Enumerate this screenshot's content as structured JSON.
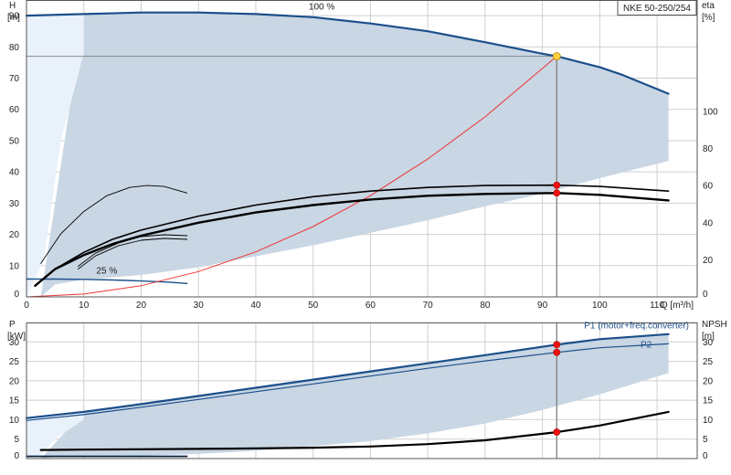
{
  "chart_data": [
    {
      "type": "line",
      "panel": "top",
      "title": "NKE 50-250/254",
      "xlabel": "Q [m³/h]",
      "ylabel": "H",
      "ylabel_unit": "[m]",
      "y2label": "eta",
      "y2label_unit": "[%]",
      "xlim": [
        0,
        117
      ],
      "ylim": [
        0,
        95
      ],
      "y2lim": [
        0,
        160
      ],
      "x_ticks": [
        0,
        10,
        20,
        30,
        40,
        50,
        60,
        70,
        80,
        90,
        100,
        110
      ],
      "y_ticks": [
        0,
        10,
        20,
        30,
        40,
        50,
        60,
        70,
        80,
        90
      ],
      "y2_ticks": [
        0,
        20,
        40,
        60,
        80,
        100
      ],
      "annotations": [
        "100 %",
        "25 %"
      ],
      "series": [
        {
          "role": "head-100",
          "color": "#1b4f8a",
          "width": 2.2,
          "x": [
            0,
            10,
            20,
            30,
            40,
            50,
            60,
            70,
            80,
            90,
            92.5,
            100,
            104,
            112
          ],
          "y": [
            90,
            90.5,
            91,
            91,
            90.5,
            89.5,
            87.5,
            85,
            81.5,
            77.8,
            77,
            73.5,
            71,
            65
          ]
        },
        {
          "role": "head-25",
          "color": "#1b4f8a",
          "width": 1.4,
          "x": [
            0,
            5,
            10,
            15,
            20,
            25,
            28
          ],
          "y": [
            5.7,
            5.7,
            5.6,
            5.4,
            5.1,
            4.7,
            4.3
          ]
        },
        {
          "role": "system-curve",
          "color": "#ee3333",
          "width": 1,
          "x": [
            0,
            10,
            20,
            30,
            40,
            50,
            60,
            70,
            80,
            92.5
          ],
          "y": [
            0,
            0.9,
            3.6,
            8.1,
            14.4,
            22.5,
            32.4,
            44.1,
            57.6,
            77
          ]
        },
        {
          "role": "eta-upper",
          "axis": "y2",
          "color": "#000000",
          "width": 1.6,
          "x": [
            1.5,
            5,
            10,
            15,
            20,
            30,
            40,
            50,
            60,
            70,
            80,
            92.5,
            100,
            112
          ],
          "y": [
            6,
            15,
            24,
            31,
            36,
            43.5,
            49.5,
            54,
            57,
            59,
            60,
            60.2,
            59.5,
            57
          ]
        },
        {
          "role": "eta-lower",
          "axis": "y2",
          "color": "#000000",
          "width": 2.4,
          "x": [
            1.5,
            5,
            10,
            15,
            20,
            30,
            40,
            50,
            60,
            70,
            80,
            92.5,
            100,
            112
          ],
          "y": [
            6,
            15,
            22.5,
            28.5,
            33,
            40,
            45.5,
            49.5,
            52.5,
            54.5,
            55.5,
            56,
            55,
            52
          ]
        },
        {
          "role": "eta-25-a",
          "axis": "y2",
          "color": "#000000",
          "width": 0.9,
          "x": [
            9,
            12,
            16,
            20,
            24,
            28
          ],
          "y": [
            15,
            22,
            27.5,
            30.5,
            31.5,
            31
          ]
        },
        {
          "role": "eta-25-b",
          "axis": "y2",
          "color": "#000000",
          "width": 0.9,
          "x": [
            9,
            12,
            16,
            20,
            24,
            28
          ],
          "y": [
            16.5,
            23.5,
            29,
            32.5,
            33.5,
            33
          ]
        },
        {
          "role": "eta-thin-arc",
          "axis": "y2",
          "color": "#000000",
          "width": 0.9,
          "x": [
            2.5,
            6,
            10,
            14,
            18,
            21,
            24,
            28
          ],
          "y": [
            18,
            34,
            46,
            54.5,
            59,
            60,
            59.5,
            56
          ]
        }
      ],
      "bands": [
        {
          "role": "operating-range",
          "color": "#c9d6e3",
          "upper_x": [
            10,
            20,
            30,
            40,
            50,
            60,
            70,
            80,
            90,
            100,
            104,
            112
          ],
          "upper_y": [
            90.5,
            91,
            91,
            90.5,
            89.5,
            87.5,
            85,
            81.5,
            77.8,
            73.5,
            71,
            65
          ],
          "lower_x": [
            112,
            100,
            90,
            80,
            70,
            60,
            50,
            40,
            30,
            20,
            10,
            5,
            2.5
          ],
          "lower_y": [
            43.5,
            38,
            33,
            29,
            24.5,
            20.5,
            16.5,
            13,
            9.5,
            7,
            5.5,
            4,
            0
          ]
        },
        {
          "role": "light-region",
          "color": "#e9f1fa",
          "upper_x": [
            0,
            10
          ],
          "upper_y": [
            90,
            90.5
          ],
          "lower_x": [
            10,
            6,
            3,
            0
          ],
          "lower_y": [
            78,
            50,
            12,
            0
          ]
        }
      ],
      "duty_point": {
        "x": 92.5,
        "y": 77
      },
      "markers": [
        {
          "axis": "y2",
          "x": 92.5,
          "y": 60.2
        },
        {
          "axis": "y2",
          "x": 92.5,
          "y": 56
        }
      ]
    },
    {
      "type": "line",
      "panel": "bottom",
      "ylabel": "P",
      "ylabel_unit": "[kW]",
      "y2label": "NPSH",
      "y2label_unit": "[m]",
      "xlim": [
        0,
        117
      ],
      "ylim": [
        0,
        35
      ],
      "y2lim": [
        0,
        35
      ],
      "y_ticks": [
        0,
        5,
        10,
        15,
        20,
        25,
        30
      ],
      "y2_ticks": [
        0,
        5,
        10,
        15,
        20,
        25,
        30
      ],
      "legend": [
        "P1 (motor+freq.converter)",
        "P2"
      ],
      "series": [
        {
          "role": "P1",
          "color": "#1b4f8a",
          "width": 2.2,
          "x": [
            0,
            10,
            20,
            30,
            40,
            50,
            60,
            70,
            80,
            92.5,
            100,
            112
          ],
          "y": [
            10.4,
            12,
            14,
            16.1,
            18.2,
            20.3,
            22.4,
            24.5,
            26.6,
            29.3,
            30.7,
            32
          ]
        },
        {
          "role": "P2",
          "color": "#1b4f8a",
          "width": 1.2,
          "x": [
            0,
            10,
            20,
            30,
            40,
            50,
            60,
            70,
            80,
            92.5,
            100,
            112
          ],
          "y": [
            9.8,
            11.3,
            13.2,
            15.2,
            17.2,
            19.2,
            21.2,
            23.2,
            25.1,
            27.3,
            28.5,
            29.5
          ]
        },
        {
          "role": "NPSH",
          "axis": "y2",
          "color": "#000000",
          "width": 2.2,
          "x": [
            2.5,
            10,
            20,
            30,
            40,
            50,
            60,
            70,
            80,
            92.5,
            100,
            112
          ],
          "y": [
            2.2,
            2.3,
            2.4,
            2.5,
            2.6,
            2.8,
            3.1,
            3.7,
            4.7,
            6.8,
            8.5,
            12
          ]
        },
        {
          "role": "P-25",
          "color": "#1b4f8a",
          "width": 1.6,
          "x": [
            0,
            10,
            20,
            28
          ],
          "y": [
            0.6,
            0.6,
            0.6,
            0.6
          ]
        },
        {
          "role": "P-25b",
          "color": "#000000",
          "width": 1,
          "x": [
            0,
            10,
            20,
            28
          ],
          "y": [
            0.5,
            0.5,
            0.5,
            0.5
          ]
        }
      ],
      "bands": [
        {
          "role": "power-range",
          "color": "#c9d6e3",
          "upper_x": [
            10,
            20,
            30,
            40,
            50,
            60,
            70,
            80,
            92.5,
            100,
            112
          ],
          "upper_y": [
            12,
            14,
            16.1,
            18.2,
            20.3,
            22.4,
            24.5,
            26.6,
            29.3,
            30.7,
            32
          ],
          "lower_x": [
            112,
            100,
            90,
            80,
            70,
            60,
            50,
            40,
            30,
            20,
            10,
            5,
            2.5
          ],
          "lower_y": [
            22,
            16.5,
            12.5,
            9,
            6.5,
            4.5,
            3.2,
            2,
            1.2,
            0.8,
            0.8,
            0.5,
            0
          ]
        },
        {
          "role": "light-region",
          "color": "#e9f1fa",
          "upper_x": [
            0,
            10
          ],
          "upper_y": [
            10.4,
            12
          ],
          "lower_x": [
            10,
            5,
            2.5,
            0
          ],
          "lower_y": [
            10,
            5,
            1,
            0
          ]
        }
      ],
      "markers": [
        {
          "x": 92.5,
          "y": 29.3
        },
        {
          "x": 92.5,
          "y": 27.3
        },
        {
          "axis": "y2",
          "x": 92.5,
          "y": 6.8
        }
      ]
    }
  ],
  "colors": {
    "grid": "#cfcfcf",
    "frame": "#555555",
    "band": "#c9d6e3",
    "light": "#e9f1fa",
    "marker": "#ee1111",
    "duty": "#ffd23f",
    "guide": "#888888"
  }
}
